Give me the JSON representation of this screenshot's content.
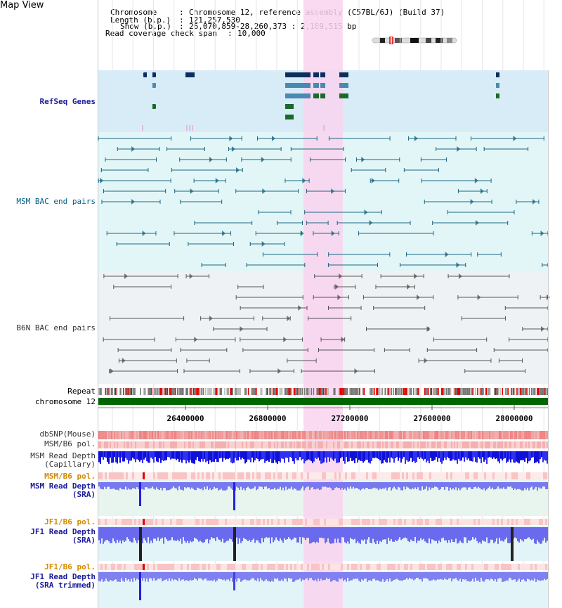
{
  "app_title": "Map View",
  "info": {
    "chromosome_label": "Chromosome",
    "chromosome_value": "Chromosome 12, reference assembly (C57BL/6J) (Build 37)",
    "length_label": "Length (b.p.)",
    "length_value": "121,257,530",
    "show_label": "Show (b.p.)",
    "show_value": "26,070,859-28,260,373 : 2,189,515 bp",
    "coverage_label": "Read coverage check span",
    "coverage_value": "10,000"
  },
  "tracks": {
    "refseq": "RefSeq Genes",
    "msm_bac": "MSM BAC end pairs",
    "b6n_bac": "B6N BAC end pairs",
    "repeat": "Repeat",
    "chromosome": "chromosome 12",
    "dbsnp": "dbSNP(Mouse)",
    "msm_pol_1": "MSM/B6 pol.",
    "msm_depth_cap": "MSM Read Depth\n(Capillary)",
    "msm_pol_2": "MSM/B6 pol.",
    "msm_depth_sra": "MSM Read Depth\n(SRA)",
    "jf1_pol_1": "JF1/B6 pol.",
    "jf1_depth_sra": "JF1 Read Depth\n(SRA)",
    "jf1_pol_2": "JF1/B6 pol.",
    "jf1_depth_trim": "JF1 Read Depth\n(SRA trimmed)"
  },
  "axis": {
    "ticks": [
      "26400000",
      "26800000",
      "27200000",
      "27600000",
      "28000000"
    ]
  },
  "colors": {
    "highlight": "#f9d4ee",
    "refseq_bg": "#d8ecf8",
    "msm_bg": "#e2f6f8",
    "b6n_bg": "#eef2f4",
    "chromosome_bar": "#006600",
    "msm_bac": "#1a6680",
    "b6n_bac": "#555555",
    "depth_blue": "#2020e0"
  }
}
